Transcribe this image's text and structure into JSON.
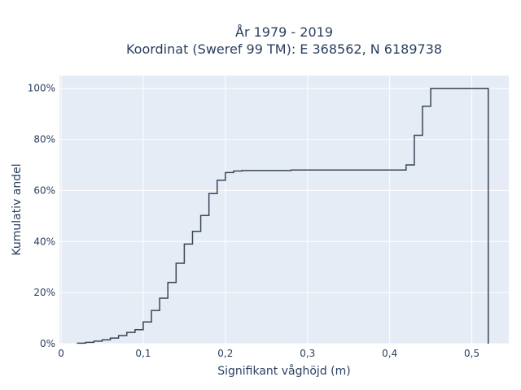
{
  "chart_data": {
    "type": "line",
    "line_shape": "step-ecdf",
    "title_line1": "År 1979 - 2019",
    "title_line2": "Koordinat (Sweref 99 TM): E 368562, N 6189738",
    "xlabel": "Signifikant våghöjd (m)",
    "ylabel": "Kumulativ andel",
    "xlim": [
      -0.002,
      0.545
    ],
    "ylim": [
      0,
      1.05
    ],
    "x_ticks": [
      0,
      0.1,
      0.2,
      0.3,
      0.4,
      0.5
    ],
    "x_tick_labels": [
      "0",
      "0,1",
      "0,2",
      "0,3",
      "0,4",
      "0,5"
    ],
    "y_ticks": [
      0,
      0.2,
      0.4,
      0.6,
      0.8,
      1.0
    ],
    "y_tick_labels": [
      "0%",
      "20%",
      "40%",
      "60%",
      "80%",
      "100%"
    ],
    "grid": true,
    "colors": {
      "plot_bg": "#e5ecf6",
      "grid": "#ffffff",
      "line": "#3a4557",
      "text": "#2a3f5f"
    },
    "series": [
      {
        "x": [
          0.02,
          0.03,
          0.04,
          0.05,
          0.06,
          0.07,
          0.08,
          0.09,
          0.1,
          0.11,
          0.12,
          0.13,
          0.14,
          0.15,
          0.16,
          0.17,
          0.18,
          0.19,
          0.2,
          0.21,
          0.22,
          0.28,
          0.42,
          0.43,
          0.44,
          0.45,
          0.52
        ],
        "y": [
          0.002,
          0.005,
          0.01,
          0.015,
          0.022,
          0.032,
          0.044,
          0.055,
          0.085,
          0.13,
          0.178,
          0.24,
          0.315,
          0.39,
          0.44,
          0.502,
          0.588,
          0.64,
          0.67,
          0.676,
          0.678,
          0.68,
          0.7,
          0.816,
          0.93,
          1.0,
          1.0
        ]
      }
    ]
  }
}
